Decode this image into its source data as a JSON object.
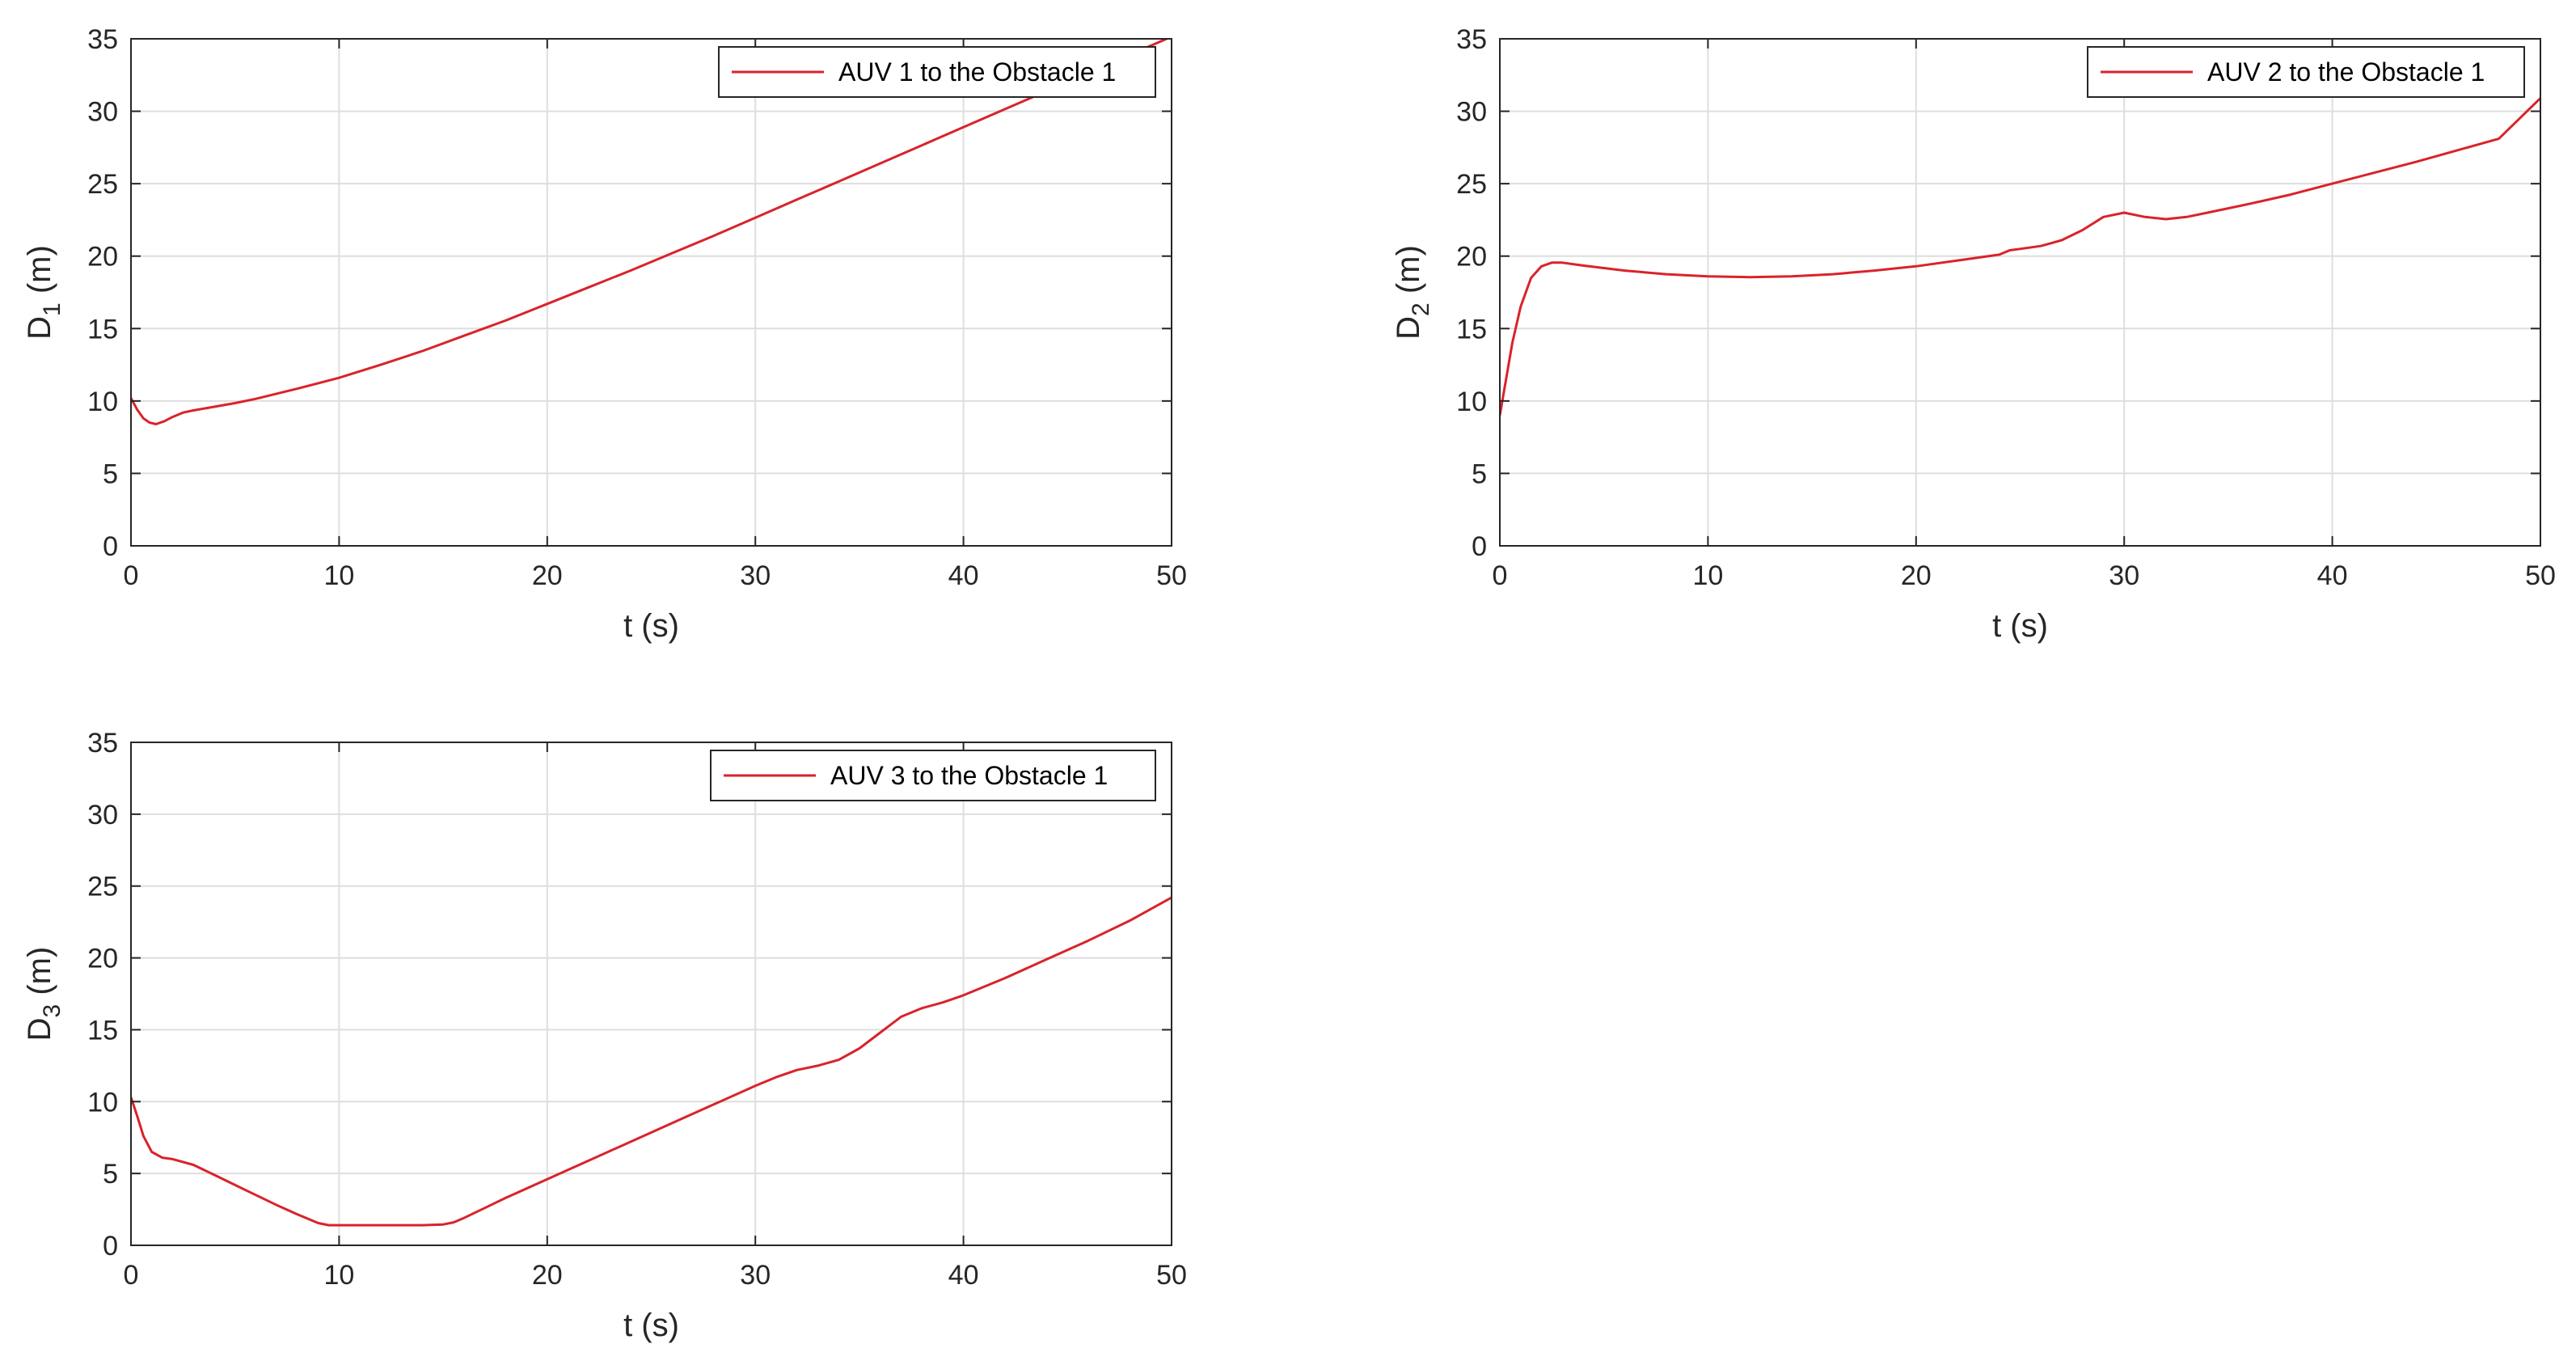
{
  "chart_data": [
    {
      "type": "line",
      "xlabel": "t (s)",
      "ylabel_main": "D",
      "ylabel_sub": "1",
      "ylabel_unit": " (m)",
      "xlim": [
        0,
        50
      ],
      "ylim": [
        0,
        35
      ],
      "xticks": [
        0,
        10,
        20,
        30,
        40,
        50
      ],
      "yticks": [
        0,
        5,
        10,
        15,
        20,
        25,
        30,
        35
      ],
      "grid": true,
      "legend_position": "top-right",
      "series": [
        {
          "name": "AUV 1 to the Obstacle 1",
          "color": "#d9232b",
          "x": [
            0,
            0.3,
            0.6,
            0.9,
            1.2,
            1.6,
            2,
            2.5,
            3,
            4,
            5,
            6,
            8,
            10,
            12,
            14,
            16,
            18,
            20,
            22,
            24,
            26,
            28,
            30,
            32,
            34,
            36,
            38,
            40,
            42,
            44,
            46,
            48,
            50
          ],
          "y": [
            10.2,
            9.4,
            8.8,
            8.5,
            8.4,
            8.6,
            8.9,
            9.2,
            9.35,
            9.6,
            9.85,
            10.15,
            10.85,
            11.6,
            12.5,
            13.45,
            14.5,
            15.55,
            16.7,
            17.85,
            19.0,
            20.2,
            21.4,
            22.65,
            23.9,
            25.15,
            26.4,
            27.65,
            28.9,
            30.15,
            31.4,
            32.65,
            33.9,
            35.15
          ]
        }
      ]
    },
    {
      "type": "line",
      "xlabel": "t (s)",
      "ylabel_main": "D",
      "ylabel_sub": "2",
      "ylabel_unit": " (m)",
      "xlim": [
        0,
        50
      ],
      "ylim": [
        0,
        35
      ],
      "xticks": [
        0,
        10,
        20,
        30,
        40,
        50
      ],
      "yticks": [
        0,
        5,
        10,
        15,
        20,
        25,
        30,
        35
      ],
      "grid": true,
      "legend_position": "top-right",
      "series": [
        {
          "name": "AUV 2 to the Obstacle 1",
          "color": "#d9232b",
          "x": [
            0,
            0.3,
            0.6,
            1,
            1.5,
            2,
            2.5,
            3,
            4,
            6,
            8,
            10,
            12,
            14,
            16,
            18,
            20,
            22,
            24,
            24.5,
            25,
            26,
            27,
            28,
            29,
            30,
            31,
            32,
            33,
            34,
            36,
            38,
            40,
            42,
            44,
            46,
            48,
            50
          ],
          "y": [
            9.0,
            11.5,
            14.0,
            16.5,
            18.5,
            19.3,
            19.55,
            19.55,
            19.35,
            19.0,
            18.75,
            18.6,
            18.55,
            18.6,
            18.75,
            19.0,
            19.3,
            19.7,
            20.1,
            20.4,
            20.5,
            20.7,
            21.1,
            21.8,
            22.7,
            23.0,
            22.7,
            22.55,
            22.7,
            23.0,
            23.6,
            24.25,
            25.0,
            25.75,
            26.5,
            27.3,
            28.1,
            30.9
          ]
        }
      ]
    },
    {
      "type": "line",
      "xlabel": "t (s)",
      "ylabel_main": "D",
      "ylabel_sub": "3",
      "ylabel_unit": " (m)",
      "xlim": [
        0,
        50
      ],
      "ylim": [
        0,
        35
      ],
      "xticks": [
        0,
        10,
        20,
        30,
        40,
        50
      ],
      "yticks": [
        0,
        5,
        10,
        15,
        20,
        25,
        30,
        35
      ],
      "grid": true,
      "legend_position": "top-right",
      "series": [
        {
          "name": "AUV 3 to the Obstacle 1",
          "color": "#d9232b",
          "x": [
            0,
            0.3,
            0.6,
            1,
            1.5,
            2,
            3,
            4,
            5,
            6,
            7,
            8,
            9,
            9.5,
            10,
            12,
            14,
            15,
            15.5,
            16,
            17,
            18,
            20,
            22,
            24,
            26,
            28,
            30,
            31,
            32,
            33,
            34,
            35,
            36,
            37,
            38,
            39,
            40,
            42,
            44,
            46,
            48,
            50
          ],
          "y": [
            10.3,
            9.0,
            7.6,
            6.5,
            6.1,
            6.0,
            5.6,
            4.9,
            4.2,
            3.5,
            2.8,
            2.15,
            1.55,
            1.4,
            1.4,
            1.4,
            1.4,
            1.45,
            1.6,
            1.9,
            2.6,
            3.3,
            4.6,
            5.9,
            7.2,
            8.5,
            9.8,
            11.1,
            11.7,
            12.2,
            12.5,
            12.9,
            13.7,
            14.8,
            15.9,
            16.5,
            16.9,
            17.4,
            18.6,
            19.9,
            21.2,
            22.6,
            24.2
          ]
        }
      ]
    }
  ]
}
